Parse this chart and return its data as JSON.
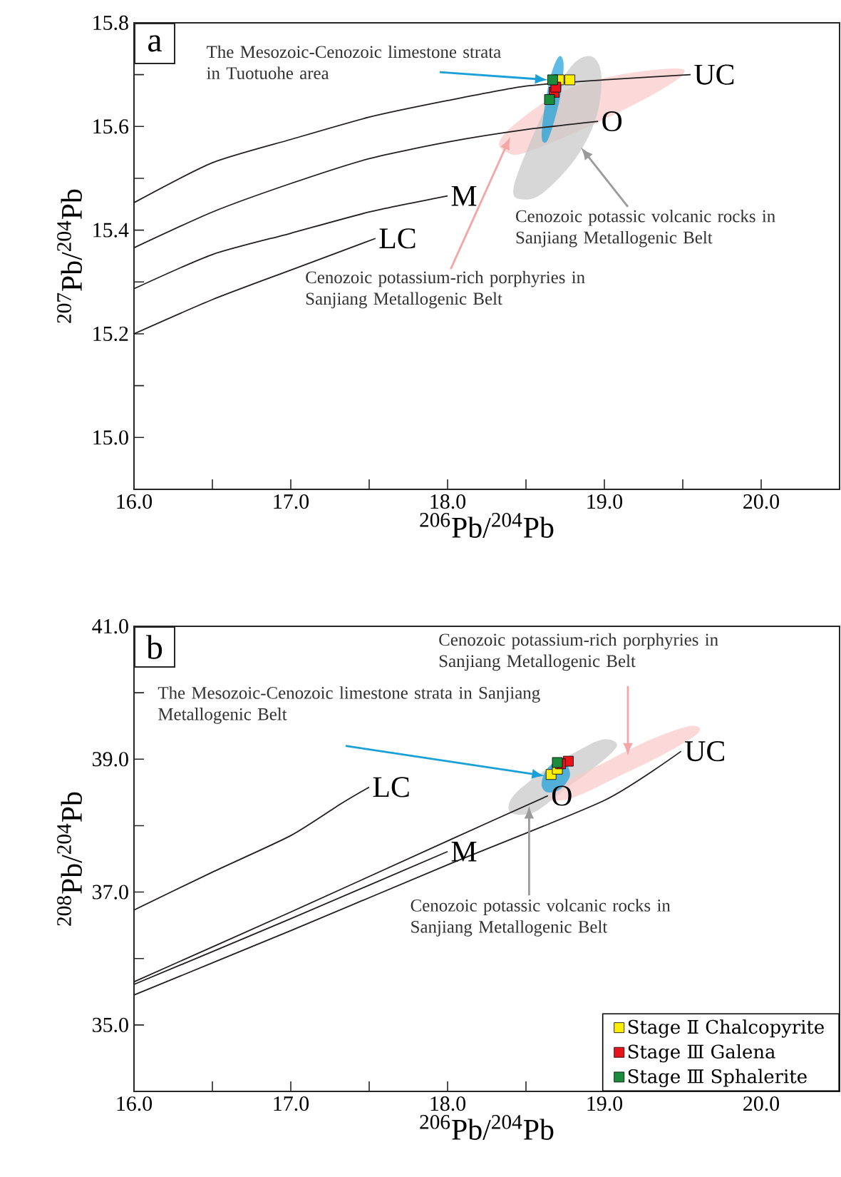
{
  "chart_data": [
    {
      "type": "line",
      "title": "a",
      "xlabel": "$^{206}$Pb/$^{204}$Pb",
      "ylabel": "$^{207}$Pb/$^{204}$Pb",
      "xlim": [
        16,
        20.5
      ],
      "ylim": [
        14.9,
        15.8
      ],
      "xticks": [
        {
          "value": 16,
          "label": "16.0"
        },
        {
          "value": 16.5,
          "label": null
        },
        {
          "value": 17,
          "label": "17.0"
        },
        {
          "value": 17.5,
          "label": null
        },
        {
          "value": 18,
          "label": "18.0"
        },
        {
          "value": 18.5,
          "label": null
        },
        {
          "value": 19,
          "label": "19.0"
        },
        {
          "value": 19.5,
          "label": null
        },
        {
          "value": 20,
          "label": "20.0"
        }
      ],
      "yticks": [
        {
          "value": 15.0,
          "label": "15.0"
        },
        {
          "value": 15.1,
          "label": null
        },
        {
          "value": 15.2,
          "label": "15.2"
        },
        {
          "value": 15.3,
          "label": null
        },
        {
          "value": 15.4,
          "label": "15.4"
        },
        {
          "value": 15.5,
          "label": null
        },
        {
          "value": 15.6,
          "label": "15.6"
        },
        {
          "value": 15.7,
          "label": null
        },
        {
          "value": 15.8,
          "label": "15.8"
        }
      ],
      "grid": false,
      "legend": false,
      "series": [
        {
          "type": "area",
          "color": "#f9c9c9",
          "x": [
            18.33,
            18.45,
            18.75,
            19.1,
            19.45,
            19.5,
            19.3,
            18.9,
            18.5,
            18.38
          ],
          "values": [
            15.57,
            15.61,
            15.67,
            15.7,
            15.712,
            15.7,
            15.66,
            15.6,
            15.55,
            15.55
          ]
        },
        {
          "type": "area",
          "color": "#c6c6c6",
          "x": [
            18.42,
            18.5,
            18.65,
            18.8,
            18.92,
            18.98,
            18.95,
            18.82,
            18.6,
            18.46
          ],
          "values": [
            15.48,
            15.55,
            15.65,
            15.72,
            15.735,
            15.7,
            15.62,
            15.54,
            15.47,
            15.46
          ]
        },
        {
          "type": "area",
          "color": "#1aa0d8",
          "x": [
            18.6,
            18.62,
            18.66,
            18.71,
            18.74,
            18.72,
            18.67,
            18.63
          ],
          "values": [
            15.58,
            15.64,
            15.7,
            15.735,
            15.72,
            15.66,
            15.6,
            15.57
          ]
        },
        {
          "name": "UC",
          "color": "#231f20",
          "x": [
            16,
            16.5,
            17,
            17.5,
            18,
            18.5,
            19,
            19.55
          ],
          "values": [
            15.453,
            15.53,
            15.575,
            15.618,
            15.65,
            15.678,
            15.69,
            15.7
          ]
        },
        {
          "name": "O",
          "color": "#231f20",
          "x": [
            16,
            16.5,
            17,
            17.5,
            18,
            18.5,
            18.96
          ],
          "values": [
            15.366,
            15.435,
            15.49,
            15.538,
            15.57,
            15.594,
            15.61
          ]
        },
        {
          "name": "M",
          "color": "#231f20",
          "x": [
            16,
            16.5,
            17,
            17.5,
            18
          ],
          "values": [
            15.287,
            15.353,
            15.394,
            15.435,
            15.466
          ]
        },
        {
          "name": "LC",
          "color": "#231f20",
          "x": [
            16,
            16.5,
            17,
            17.54
          ],
          "values": [
            15.2,
            15.266,
            15.323,
            15.384
          ]
        },
        {
          "type": "scatter",
          "marker": "square",
          "color": "#ffee00",
          "x": [
            18.71,
            18.78
          ],
          "values": [
            15.69,
            15.69
          ]
        },
        {
          "type": "scatter",
          "marker": "square",
          "color": "#e8141c",
          "x": [
            18.68,
            18.69
          ],
          "values": [
            15.666,
            15.676
          ]
        },
        {
          "type": "scatter",
          "marker": "square",
          "color": "#1a8c3c",
          "x": [
            18.67,
            18.65
          ],
          "values": [
            15.69,
            15.652
          ]
        }
      ],
      "annotations": [
        {
          "text": "The Mesozoic-Cenozoic limestone strata in Tuotuohe area",
          "x": 18.64,
          "y": 15.69
        },
        {
          "text": "Cenozoic potassic volcanic rocks in Sanjiang Metallogenic Belt",
          "x": 18.85,
          "y": 15.56
        },
        {
          "text": "Cenozoic potassium-rich porphyries in Sanjiang Metallogenic Belt",
          "x": 18.4,
          "y": 15.58
        }
      ]
    },
    {
      "type": "line",
      "title": "b",
      "xlabel": "$^{206}$Pb/$^{204}$Pb",
      "ylabel": "$^{208}$Pb/$^{204}$Pb",
      "xlim": [
        16,
        20.5
      ],
      "ylim": [
        34,
        41
      ],
      "xticks": [
        {
          "value": 16,
          "label": "16.0"
        },
        {
          "value": 16.5,
          "label": null
        },
        {
          "value": 17,
          "label": "17.0"
        },
        {
          "value": 17.5,
          "label": null
        },
        {
          "value": 18,
          "label": "18.0"
        },
        {
          "value": 18.5,
          "label": null
        },
        {
          "value": 19,
          "label": "19.0"
        },
        {
          "value": 19.5,
          "label": null
        },
        {
          "value": 20,
          "label": "20.0"
        }
      ],
      "yticks": [
        {
          "value": 35,
          "label": "35.0"
        },
        {
          "value": 36,
          "label": null
        },
        {
          "value": 37,
          "label": "37.0"
        },
        {
          "value": 38,
          "label": null
        },
        {
          "value": 39,
          "label": "39.0"
        },
        {
          "value": 40,
          "label": null
        },
        {
          "value": 41,
          "label": "41.0"
        }
      ],
      "grid": false,
      "legend": "bottom right",
      "series": [
        {
          "type": "area",
          "color": "#c6c6c6",
          "x": [
            18.4,
            18.42,
            18.6,
            18.85,
            19.0,
            19.08,
            18.95,
            18.75,
            18.55
          ],
          "values": [
            38.2,
            38.45,
            38.8,
            39.15,
            39.3,
            39.2,
            38.9,
            38.55,
            38.2
          ]
        },
        {
          "type": "area",
          "color": "#f9c9c9",
          "x": [
            18.65,
            18.75,
            19.0,
            19.3,
            19.55,
            19.6,
            19.4,
            19.1,
            18.8
          ],
          "values": [
            38.4,
            38.65,
            38.95,
            39.3,
            39.5,
            39.4,
            39.1,
            38.75,
            38.42
          ]
        },
        {
          "type": "area",
          "color": "#1aa0d8",
          "x": [
            18.6,
            18.62,
            18.68,
            18.75,
            18.78,
            18.72,
            18.64
          ],
          "values": [
            38.6,
            38.8,
            38.95,
            38.95,
            38.75,
            38.55,
            38.5
          ]
        },
        {
          "name": "UC",
          "color": "#231f20",
          "x": [
            16,
            17,
            18,
            19,
            19.49
          ],
          "values": [
            35.45,
            36.42,
            37.41,
            38.38,
            39.12
          ]
        },
        {
          "name": "O",
          "color": "#231f20",
          "x": [
            16,
            17,
            18,
            18.64
          ],
          "values": [
            35.65,
            36.7,
            37.77,
            38.45
          ]
        },
        {
          "name": "M",
          "color": "#231f20",
          "x": [
            16,
            17,
            18
          ],
          "values": [
            35.61,
            36.6,
            37.61
          ]
        },
        {
          "name": "LC",
          "color": "#231f20",
          "x": [
            16,
            16.5,
            17,
            17.32,
            17.5
          ],
          "values": [
            36.73,
            37.3,
            37.85,
            38.33,
            38.58
          ]
        },
        {
          "type": "scatter",
          "name": "Stage Ⅱ  Chalcopyrite",
          "marker": "square",
          "color": "#ffee00",
          "x": [
            18.66,
            18.7
          ],
          "values": [
            38.77,
            38.85
          ]
        },
        {
          "type": "scatter",
          "name": "Stage Ⅲ  Galena",
          "marker": "square",
          "color": "#e8141c",
          "x": [
            18.77,
            18.72
          ],
          "values": [
            38.97,
            38.93
          ]
        },
        {
          "type": "scatter",
          "name": "Stage Ⅲ  Sphalerite",
          "marker": "square",
          "color": "#1a8c3c",
          "x": [
            18.7
          ],
          "values": [
            38.95
          ]
        }
      ],
      "annotations": [
        {
          "text": "Cenozoic potassium-rich porphyries in Sanjiang Metallogenic Belt",
          "x": 19.15,
          "y": 39.05
        },
        {
          "text": "The Mesozoic-Cenozoic limestone strata in Sanjiang Metallogenic Belt",
          "x": 18.62,
          "y": 38.75
        },
        {
          "text": "Cenozoic potassic volcanic rocks in Sanjiang Metallogenic Belt",
          "x": 18.52,
          "y": 38.3
        }
      ]
    }
  ]
}
